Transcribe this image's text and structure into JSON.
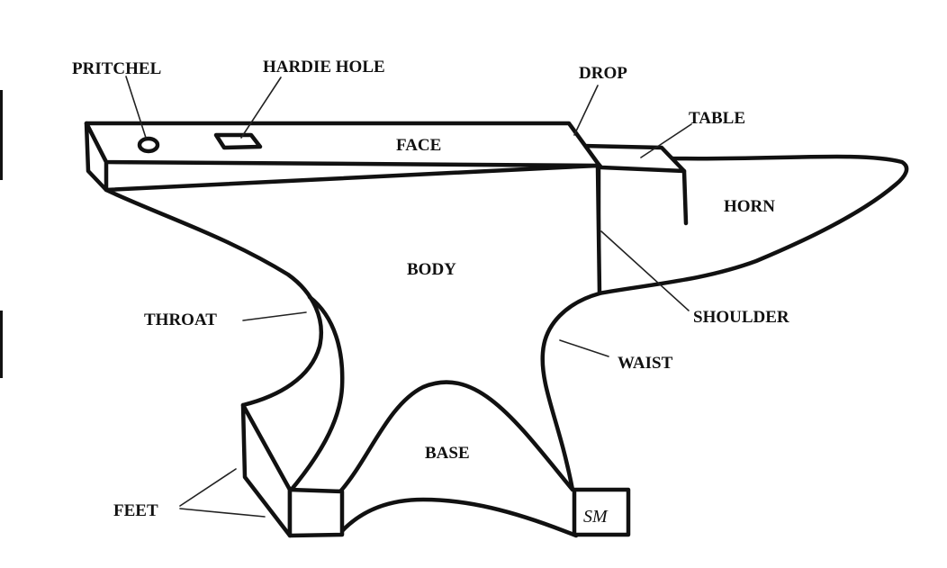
{
  "labels": {
    "pritchel": "PRITCHEL",
    "hardie_hole": "HARDIE HOLE",
    "drop": "DROP",
    "table": "TABLE",
    "face": "FACE",
    "horn": "HORN",
    "body": "BODY",
    "throat": "THROAT",
    "shoulder": "SHOULDER",
    "waist": "WAIST",
    "base": "BASE",
    "feet": "FEET"
  },
  "maker_mark": "SM",
  "colors": {
    "ink": "#111111",
    "paper": "#ffffff"
  }
}
